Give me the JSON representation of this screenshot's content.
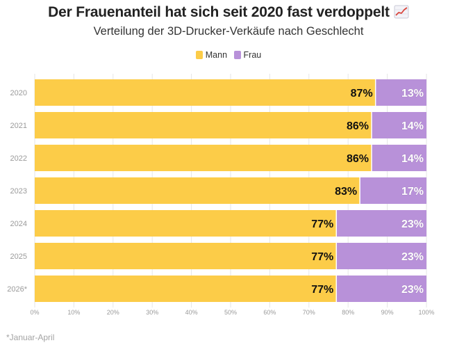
{
  "title": "Der Frauenanteil hat sich seit 2020 fast verdoppelt",
  "title_icon": "chart-increasing-emoji",
  "subtitle": "Verteilung der 3D-Drucker-Verkäufe nach Geschlecht",
  "footnote": "*Januar-April",
  "colors": {
    "mann": "#fccc48",
    "frau": "#b891d9",
    "label_dark": "#111111",
    "label_light": "#ffffff",
    "axis_text": "#9a9a9a",
    "grid": "#e6e6e6"
  },
  "chart_data": {
    "type": "bar",
    "orientation": "horizontal",
    "stacked": true,
    "categories": [
      "2020",
      "2021",
      "2022",
      "2023",
      "2024",
      "2025",
      "2026*"
    ],
    "series": [
      {
        "name": "Mann",
        "values": [
          87,
          86,
          86,
          83,
          77,
          77,
          77
        ],
        "labels": [
          "87%",
          "86%",
          "86%",
          "83%",
          "77%",
          "77%",
          "77%"
        ]
      },
      {
        "name": "Frau",
        "values": [
          13,
          14,
          14,
          17,
          23,
          23,
          23
        ],
        "labels": [
          "13%",
          "14%",
          "14%",
          "17%",
          "23%",
          "23%",
          "23%"
        ]
      }
    ],
    "xlim": [
      0,
      100
    ],
    "xticks": [
      "0%",
      "10%",
      "20%",
      "30%",
      "40%",
      "50%",
      "60%",
      "70%",
      "80%",
      "90%",
      "100%"
    ],
    "legend_position": "top",
    "grid": true
  }
}
